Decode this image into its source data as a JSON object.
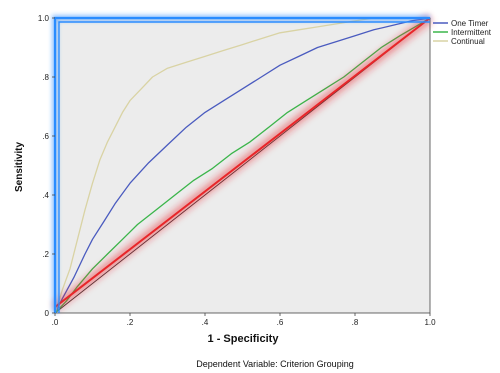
{
  "chart_data": {
    "type": "line",
    "xlabel": "1 - Specificity",
    "ylabel": "Sensitivity",
    "xlim": [
      0,
      1
    ],
    "ylim": [
      0,
      1
    ],
    "x_ticks": [
      ".0",
      ".2",
      ".4",
      ".6",
      ".8",
      "1.0"
    ],
    "y_ticks": [
      "0",
      ".2",
      ".4",
      ".6",
      ".8",
      "1.0"
    ],
    "footnote": "Dependent Variable: Criterion Grouping",
    "legend_position": "right",
    "grid": false,
    "plot_background": "#ececec",
    "series": [
      {
        "name": "One Timer",
        "color": "#4a5bbf",
        "points": [
          [
            0,
            0
          ],
          [
            0.02,
            0.05
          ],
          [
            0.05,
            0.12
          ],
          [
            0.08,
            0.2
          ],
          [
            0.1,
            0.25
          ],
          [
            0.13,
            0.31
          ],
          [
            0.16,
            0.37
          ],
          [
            0.2,
            0.44
          ],
          [
            0.25,
            0.51
          ],
          [
            0.3,
            0.57
          ],
          [
            0.35,
            0.63
          ],
          [
            0.4,
            0.68
          ],
          [
            0.45,
            0.72
          ],
          [
            0.5,
            0.76
          ],
          [
            0.55,
            0.8
          ],
          [
            0.6,
            0.84
          ],
          [
            0.65,
            0.87
          ],
          [
            0.7,
            0.9
          ],
          [
            0.75,
            0.92
          ],
          [
            0.8,
            0.94
          ],
          [
            0.85,
            0.96
          ],
          [
            0.9,
            0.975
          ],
          [
            0.95,
            0.99
          ],
          [
            1,
            1
          ]
        ]
      },
      {
        "name": "Intermittent",
        "color": "#3bb54a",
        "points": [
          [
            0,
            0
          ],
          [
            0.03,
            0.04
          ],
          [
            0.06,
            0.09
          ],
          [
            0.1,
            0.15
          ],
          [
            0.14,
            0.2
          ],
          [
            0.18,
            0.25
          ],
          [
            0.22,
            0.3
          ],
          [
            0.27,
            0.35
          ],
          [
            0.32,
            0.4
          ],
          [
            0.37,
            0.45
          ],
          [
            0.42,
            0.49
          ],
          [
            0.47,
            0.54
          ],
          [
            0.52,
            0.58
          ],
          [
            0.57,
            0.63
          ],
          [
            0.62,
            0.68
          ],
          [
            0.67,
            0.72
          ],
          [
            0.72,
            0.76
          ],
          [
            0.77,
            0.8
          ],
          [
            0.82,
            0.85
          ],
          [
            0.87,
            0.9
          ],
          [
            0.92,
            0.94
          ],
          [
            0.96,
            0.97
          ],
          [
            1,
            1
          ]
        ]
      },
      {
        "name": "Continual",
        "color": "#d9d3a4",
        "points": [
          [
            0,
            0
          ],
          [
            0.02,
            0.08
          ],
          [
            0.04,
            0.15
          ],
          [
            0.06,
            0.25
          ],
          [
            0.08,
            0.35
          ],
          [
            0.1,
            0.44
          ],
          [
            0.12,
            0.52
          ],
          [
            0.14,
            0.58
          ],
          [
            0.16,
            0.63
          ],
          [
            0.18,
            0.68
          ],
          [
            0.2,
            0.72
          ],
          [
            0.23,
            0.76
          ],
          [
            0.26,
            0.8
          ],
          [
            0.3,
            0.83
          ],
          [
            0.35,
            0.85
          ],
          [
            0.4,
            0.87
          ],
          [
            0.45,
            0.89
          ],
          [
            0.5,
            0.91
          ],
          [
            0.55,
            0.93
          ],
          [
            0.6,
            0.95
          ],
          [
            0.65,
            0.96
          ],
          [
            0.7,
            0.97
          ],
          [
            0.75,
            0.98
          ],
          [
            0.8,
            0.99
          ],
          [
            0.85,
            1
          ],
          [
            1,
            1
          ]
        ]
      }
    ],
    "reference_line": {
      "color": "#333333",
      "points": [
        [
          0,
          0
        ],
        [
          1,
          1
        ]
      ]
    },
    "highlight_line": {
      "color": "#e8262a",
      "points": [
        [
          0,
          0.02
        ],
        [
          1,
          1
        ]
      ]
    },
    "highlight_frame_color": "#2a8cff"
  }
}
